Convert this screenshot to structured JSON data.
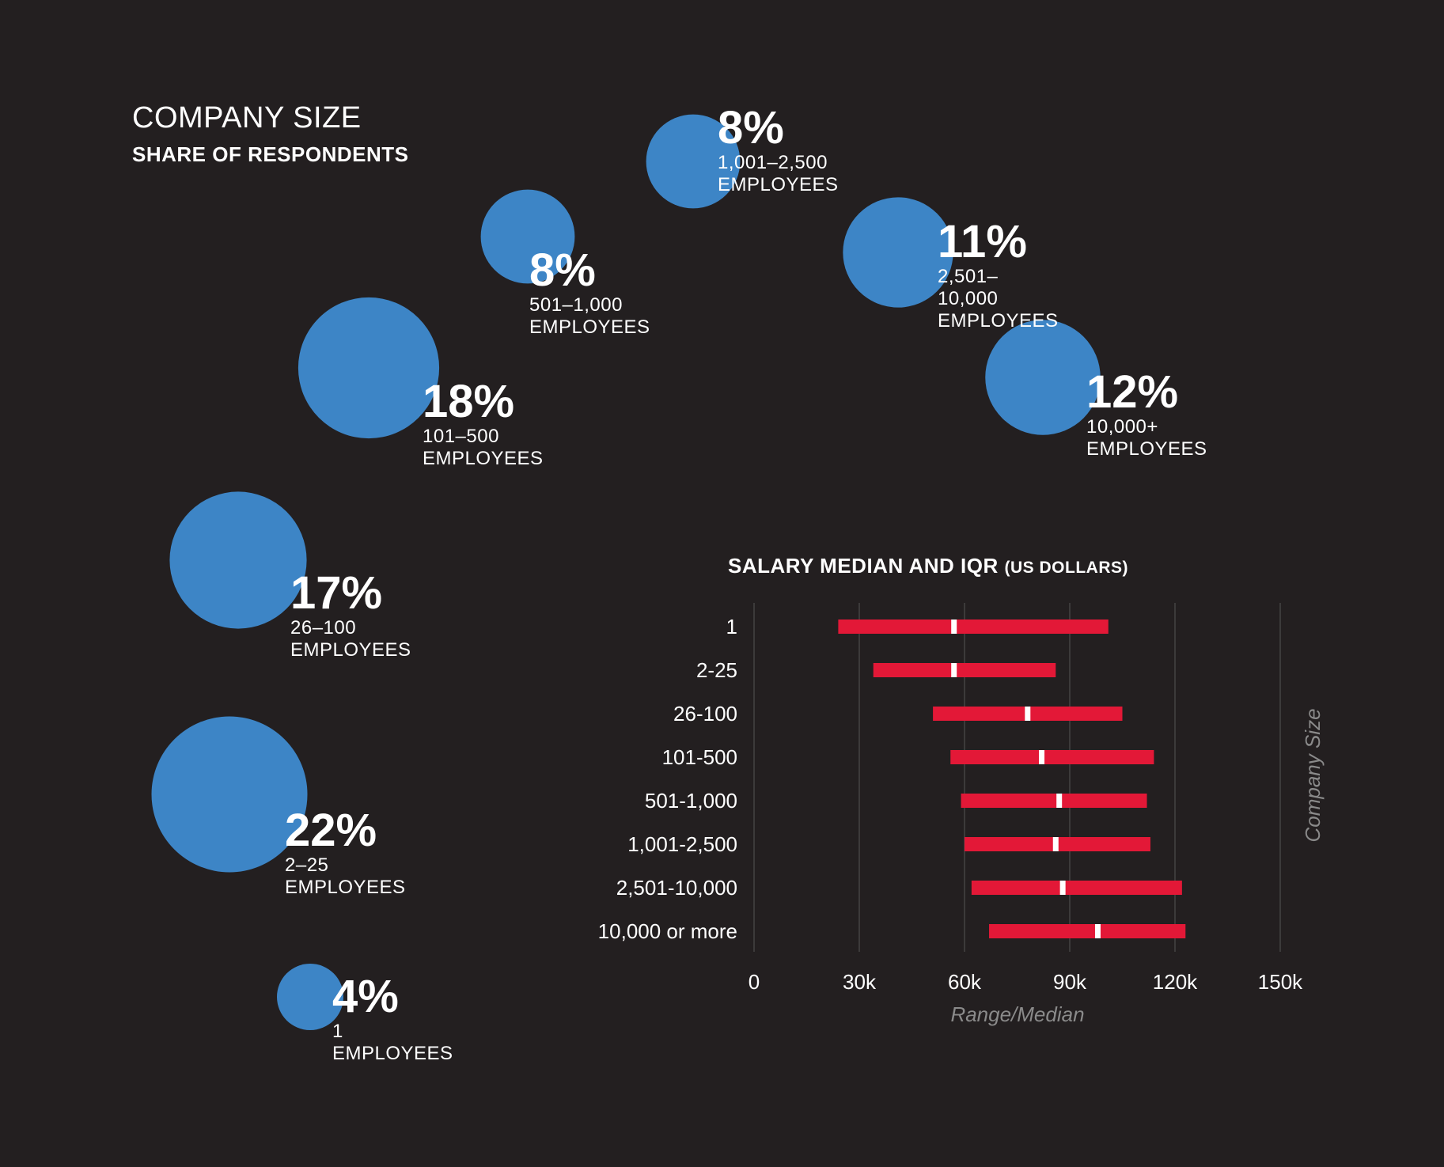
{
  "title": "COMPANY SIZE",
  "subtitle": "SHARE OF RESPONDENTS",
  "colors": {
    "background": "#231f20",
    "bubble": "#3d85c6",
    "bar": "#e31837",
    "median": "#ffffff",
    "grid": "#555555"
  },
  "chart_data": [
    {
      "type": "bubble",
      "title": "COMPANY SIZE",
      "subtitle": "SHARE OF RESPONDENTS",
      "items": [
        {
          "pct_label": "8%",
          "label": "1,001–2,500 EMPLOYEES",
          "value": 8
        },
        {
          "pct_label": "8%",
          "label": "501–1,000 EMPLOYEES",
          "value": 8
        },
        {
          "pct_label": "11%",
          "label": "2,501–10,000 EMPLOYEES",
          "value": 11
        },
        {
          "pct_label": "18%",
          "label": "101–500 EMPLOYEES",
          "value": 18
        },
        {
          "pct_label": "12%",
          "label": "10,000+ EMPLOYEES",
          "value": 12
        },
        {
          "pct_label": "17%",
          "label": "26–100 EMPLOYEES",
          "value": 17
        },
        {
          "pct_label": "22%",
          "label": "2–25 EMPLOYEES",
          "value": 22
        },
        {
          "pct_label": "4%",
          "label": "1 EMPLOYEES",
          "value": 4
        }
      ]
    },
    {
      "type": "range",
      "title": "SALARY MEDIAN AND IQR",
      "title_unit": "(US DOLLARS)",
      "xlabel": "Range/Median",
      "ylabel": "Company Size",
      "xlim": [
        0,
        150000
      ],
      "xticks": [
        0,
        30000,
        60000,
        90000,
        120000,
        150000
      ],
      "xtick_labels": [
        "0",
        "30k",
        "60k",
        "90k",
        "120k",
        "150k"
      ],
      "grid": true,
      "categories": [
        "1",
        "2-25",
        "26-100",
        "101-500",
        "501-1,000",
        "1,001-2,500",
        "2,501-10,000",
        "10,000 or more"
      ],
      "q1": [
        24000,
        34000,
        51000,
        56000,
        59000,
        60000,
        62000,
        67000
      ],
      "median": [
        57000,
        57000,
        78000,
        82000,
        87000,
        86000,
        88000,
        98000
      ],
      "q3": [
        101000,
        86000,
        105000,
        114000,
        112000,
        113000,
        122000,
        123000
      ]
    }
  ]
}
